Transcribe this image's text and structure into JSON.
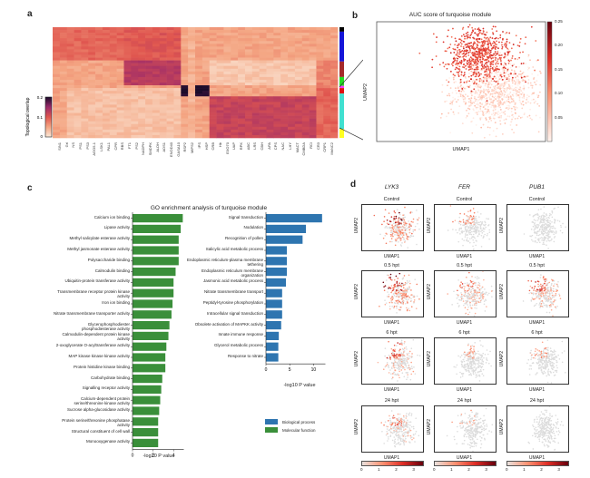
{
  "panels": {
    "a": {
      "letter": "a"
    },
    "b": {
      "letter": "b"
    },
    "c": {
      "letter": "c"
    },
    "d": {
      "letter": "d"
    }
  },
  "chart_data": [
    {
      "id": "a",
      "type": "heatmap",
      "title": "",
      "colorbar": {
        "label": "Topological overlap",
        "ticks": [
          "0",
          "0.1",
          "0.2"
        ],
        "range": [
          0,
          0.2
        ]
      },
      "module_colors": [
        "#000000",
        "#1515d8",
        "#a52a2a",
        "#22dd22",
        "#ff33ff",
        "#e01010",
        "#40e0d0",
        "#ffff22"
      ],
      "module_fractions": [
        0.04,
        0.27,
        0.14,
        0.08,
        0.02,
        0.05,
        0.32,
        0.08
      ],
      "blocks": [
        {
          "rows": [
            0,
            0.31
          ],
          "cols": [
            0,
            0.26
          ],
          "level": 0.09
        },
        {
          "rows": [
            0,
            0.31
          ],
          "cols": [
            0.26,
            0.44
          ],
          "level": 0.1
        },
        {
          "rows": [
            0.31,
            0.52
          ],
          "cols": [
            0.26,
            0.44
          ],
          "level": 0.13
        },
        {
          "rows": [
            0.52,
            0.62
          ],
          "cols": [
            0.44,
            0.56
          ],
          "level": 0.2
        },
        {
          "rows": [
            0.62,
            1
          ],
          "cols": [
            0.56,
            0.92
          ],
          "level": 0.12
        }
      ],
      "gene_labels": [
        "SIN1",
        "Grl",
        "NS",
        "PS1",
        "PS3",
        "AGO5-1",
        "LSK1",
        "PAL1",
        "CPR",
        "RBS",
        "FT1",
        "PS2",
        "NADPH",
        "SMDPK",
        "ALDH",
        "ADS1",
        "ENOD40",
        "GASA10",
        "RSP2",
        "MIPS2",
        "IPS",
        "HSP",
        "CRB",
        "Hb",
        "EXO70",
        "UAP",
        "RPK",
        "ABC",
        "LRS",
        "CBH",
        "APA",
        "CPS",
        "NAC",
        "LHY",
        "MACT",
        "CMBDA",
        "RCI",
        "CR3",
        "CRP1",
        "MnNC2"
      ]
    },
    {
      "id": "b",
      "type": "scatter",
      "title": "AUC score of turquoise module",
      "xlabel": "UMAP1",
      "ylabel": "UMAP2",
      "colorbar": {
        "ticks": [
          "0.05",
          "0.10",
          "0.15",
          "0.20",
          "0.25"
        ],
        "range": [
          0,
          0.25
        ]
      },
      "clusters": [
        {
          "name": "high",
          "center": [
            0.62,
            0.72
          ],
          "spread": [
            0.1,
            0.12
          ],
          "value_range": [
            0.1,
            0.18
          ],
          "n": 700
        },
        {
          "name": "low",
          "center": [
            0.7,
            0.42
          ],
          "spread": [
            0.13,
            0.14
          ],
          "value_range": [
            0.0,
            0.05
          ],
          "n": 900
        }
      ]
    },
    {
      "id": "c",
      "type": "bar",
      "title": "GO enrichment analysis of turquoise module",
      "xlabel": "-log10 P value",
      "legend": [
        {
          "name": "Biological process",
          "color": "#2e75b0"
        },
        {
          "name": "Molecular function",
          "color": "#3a8f3a"
        }
      ],
      "legend_placement": "bottom-right",
      "series": [
        {
          "name": "Molecular function",
          "color": "#3a8f3a",
          "xlim": [
            0,
            5
          ],
          "ticks": [
            0,
            2,
            4
          ],
          "categories": [
            "Calcium ion binding",
            "Lipase activity",
            "Methyl salicylate esterase activity",
            "Methyl jasmonate esterase activity",
            "Polysaccharide binding",
            "Calmodulin binding",
            "Ubiquitin-protein transferase activity",
            "Transmembrane receptor protein kinase activity",
            "Iron ion binding",
            "Nitrate transmembrane transporter activity",
            "Glycerophosphodiester phosphodiesterase activity",
            "Calmodulin-dependent protein kinase activity",
            "2-oxoglycerate O-acyltransferase activity",
            "MAP kinase kinase kinase activity",
            "Protein histidine kinase binding",
            "Carbohydrate binding",
            "Signalling receptor activity",
            "Calcium-dependent protein serine/threonine kinase activity",
            "Sucrose alpha-glucosidase activity",
            "Protein serine/threonine phosphatase activity",
            "Structural constituent of cell wall",
            "Monooxygenase activity"
          ],
          "values": [
            4.9,
            4.7,
            4.5,
            4.5,
            4.5,
            4.2,
            4.0,
            4.0,
            3.9,
            3.8,
            3.6,
            3.5,
            3.3,
            3.2,
            3.2,
            2.9,
            2.8,
            2.7,
            2.6,
            2.5,
            2.5,
            2.5
          ]
        },
        {
          "name": "Biological process",
          "color": "#2e75b0",
          "xlim": [
            0,
            12.5
          ],
          "ticks": [
            0,
            5,
            10
          ],
          "categories": [
            "Signal transduction",
            "Nodulation",
            "Recognition of pollen",
            "Salicylic acid metabolic process",
            "Endoplasmic reticulum-plasma membrane tethering",
            "Endoplasmic reticulum membrane organization",
            "Jasmonic acid metabolic process",
            "Nitrate transmembrane transport",
            "Peptidyl-tyrosine phosphorylation",
            "Intracellular signal transduction",
            "Obsolete activation of MAPKK activity",
            "Innate immune response",
            "Glycerol metabolic process",
            "Response to nitrate"
          ],
          "values": [
            11.8,
            8.4,
            7.7,
            4.4,
            4.4,
            4.4,
            4.2,
            3.4,
            3.4,
            3.4,
            3.2,
            2.7,
            2.6,
            2.6
          ]
        }
      ]
    },
    {
      "id": "d",
      "type": "scatter",
      "genes": [
        "LYK3",
        "FER",
        "PUB1"
      ],
      "conditions": [
        "Control",
        "0.5 hpt",
        "6 hpt",
        "24 hpt"
      ],
      "xlabel": "UMAP1",
      "ylabel": "UMAP2",
      "colorbar": {
        "ticks": [
          "0",
          "1",
          "2",
          "3"
        ],
        "range": [
          0,
          3.5
        ]
      },
      "expression_level": [
        [
          0.8,
          0.35,
          0.15
        ],
        [
          0.75,
          0.5,
          0.6
        ],
        [
          0.55,
          0.3,
          0.35
        ],
        [
          0.45,
          0.25,
          0.1
        ]
      ]
    }
  ]
}
